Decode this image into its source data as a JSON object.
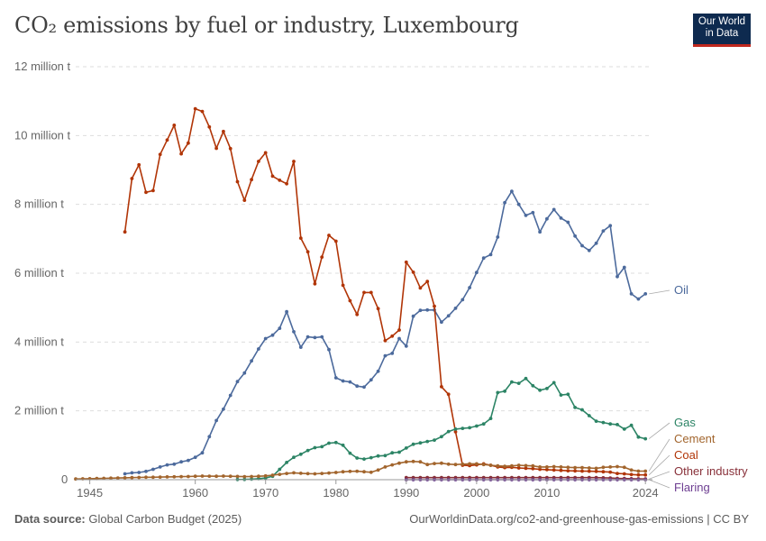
{
  "header": {
    "title": "CO₂ emissions by fuel or industry, Luxembourg",
    "logo_line1": "Our World",
    "logo_line2": "in Data"
  },
  "footer": {
    "source_label": "Data source:",
    "source_value": "Global Carbon Budget (2025)",
    "attribution": "OurWorldinData.org/co2-and-greenhouse-gas-emissions | CC BY"
  },
  "chart_data": {
    "type": "line",
    "title": "CO₂ emissions by fuel or industry, Luxembourg",
    "xlabel": "",
    "ylabel": "",
    "xlim": [
      1943,
      2025
    ],
    "ylim": [
      0,
      12000000
    ],
    "y_ticks": [
      {
        "value": 0,
        "label": "0"
      },
      {
        "value": 2000000,
        "label": "2 million t"
      },
      {
        "value": 4000000,
        "label": "4 million t"
      },
      {
        "value": 6000000,
        "label": "6 million t"
      },
      {
        "value": 8000000,
        "label": "8 million t"
      },
      {
        "value": 10000000,
        "label": "10 million t"
      },
      {
        "value": 12000000,
        "label": "12 million t"
      }
    ],
    "x_ticks": [
      {
        "value": 1945,
        "label": "1945"
      },
      {
        "value": 1960,
        "label": "1960"
      },
      {
        "value": 1970,
        "label": "1970"
      },
      {
        "value": 1980,
        "label": "1980"
      },
      {
        "value": 1990,
        "label": "1990"
      },
      {
        "value": 2000,
        "label": "2000"
      },
      {
        "value": 2010,
        "label": "2010"
      },
      {
        "value": 2024,
        "label": "2024"
      }
    ],
    "grid": true,
    "legend": "right-inline",
    "series": [
      {
        "name": "Oil",
        "color": "#4c6a9c",
        "x": [
          1950,
          1951,
          1952,
          1953,
          1954,
          1955,
          1956,
          1957,
          1958,
          1959,
          1960,
          1961,
          1962,
          1963,
          1964,
          1965,
          1966,
          1967,
          1968,
          1969,
          1970,
          1971,
          1972,
          1973,
          1974,
          1975,
          1976,
          1977,
          1978,
          1979,
          1980,
          1981,
          1982,
          1983,
          1984,
          1985,
          1986,
          1987,
          1988,
          1989,
          1990,
          1991,
          1992,
          1993,
          1994,
          1995,
          1996,
          1997,
          1998,
          1999,
          2000,
          2001,
          2002,
          2003,
          2004,
          2005,
          2006,
          2007,
          2008,
          2009,
          2010,
          2011,
          2012,
          2013,
          2014,
          2015,
          2016,
          2017,
          2018,
          2019,
          2020,
          2021,
          2022,
          2023,
          2024
        ],
        "y": [
          170000,
          200000,
          210000,
          240000,
          300000,
          370000,
          430000,
          450000,
          520000,
          560000,
          650000,
          780000,
          1250000,
          1720000,
          2050000,
          2450000,
          2850000,
          3100000,
          3450000,
          3800000,
          4100000,
          4200000,
          4400000,
          4880000,
          4300000,
          3850000,
          4150000,
          4130000,
          4150000,
          3780000,
          2960000,
          2870000,
          2840000,
          2720000,
          2690000,
          2900000,
          3150000,
          3600000,
          3670000,
          4100000,
          3880000,
          4750000,
          4920000,
          4930000,
          4930000,
          4580000,
          4760000,
          4980000,
          5230000,
          5580000,
          6020000,
          6440000,
          6540000,
          7050000,
          8050000,
          8380000,
          8000000,
          7680000,
          7760000,
          7200000,
          7580000,
          7850000,
          7600000,
          7480000,
          7080000,
          6800000,
          6660000,
          6870000,
          7230000,
          7380000,
          5900000,
          6170000,
          5400000,
          5250000,
          5400000
        ]
      },
      {
        "name": "Coal",
        "color": "#b13507",
        "x": [
          1950,
          1951,
          1952,
          1953,
          1954,
          1955,
          1956,
          1957,
          1958,
          1959,
          1960,
          1961,
          1962,
          1963,
          1964,
          1965,
          1966,
          1967,
          1968,
          1969,
          1970,
          1971,
          1972,
          1973,
          1974,
          1975,
          1976,
          1977,
          1978,
          1979,
          1980,
          1981,
          1982,
          1983,
          1984,
          1985,
          1986,
          1987,
          1988,
          1989,
          1990,
          1991,
          1992,
          1993,
          1994,
          1995,
          1996,
          1997,
          1998,
          1999,
          2000,
          2001,
          2002,
          2003,
          2004,
          2005,
          2006,
          2007,
          2008,
          2009,
          2010,
          2011,
          2012,
          2013,
          2014,
          2015,
          2016,
          2017,
          2018,
          2019,
          2020,
          2021,
          2022,
          2023,
          2024
        ],
        "y": [
          7200000,
          8750000,
          9150000,
          8350000,
          8400000,
          9450000,
          9870000,
          10300000,
          9470000,
          9780000,
          10780000,
          10700000,
          10250000,
          9630000,
          10120000,
          9620000,
          8660000,
          8120000,
          8720000,
          9250000,
          9500000,
          8820000,
          8700000,
          8600000,
          9250000,
          7020000,
          6620000,
          5690000,
          6470000,
          7100000,
          6930000,
          5650000,
          5200000,
          4800000,
          5440000,
          5440000,
          4970000,
          4040000,
          4170000,
          4350000,
          6320000,
          6030000,
          5570000,
          5760000,
          5040000,
          2700000,
          2480000,
          1390000,
          420000,
          410000,
          430000,
          460000,
          420000,
          370000,
          350000,
          360000,
          340000,
          330000,
          320000,
          300000,
          290000,
          280000,
          270000,
          260000,
          255000,
          250000,
          245000,
          240000,
          230000,
          220000,
          180000,
          170000,
          150000,
          140000,
          140000
        ]
      },
      {
        "name": "Gas",
        "color": "#2c8465",
        "x": [
          1966,
          1967,
          1968,
          1969,
          1970,
          1971,
          1972,
          1973,
          1974,
          1975,
          1976,
          1977,
          1978,
          1979,
          1980,
          1981,
          1982,
          1983,
          1984,
          1985,
          1986,
          1987,
          1988,
          1989,
          1990,
          1991,
          1992,
          1993,
          1994,
          1995,
          1996,
          1997,
          1998,
          1999,
          2000,
          2001,
          2002,
          2003,
          2004,
          2005,
          2006,
          2007,
          2008,
          2009,
          2010,
          2011,
          2012,
          2013,
          2014,
          2015,
          2016,
          2017,
          2018,
          2019,
          2020,
          2021,
          2022,
          2023,
          2024
        ],
        "y": [
          5000,
          8000,
          15000,
          30000,
          50000,
          100000,
          300000,
          500000,
          650000,
          740000,
          850000,
          930000,
          960000,
          1060000,
          1080000,
          1000000,
          770000,
          630000,
          600000,
          640000,
          690000,
          700000,
          780000,
          800000,
          920000,
          1030000,
          1070000,
          1110000,
          1150000,
          1250000,
          1400000,
          1470000,
          1490000,
          1510000,
          1560000,
          1620000,
          1780000,
          2530000,
          2570000,
          2840000,
          2800000,
          2940000,
          2730000,
          2600000,
          2650000,
          2820000,
          2460000,
          2480000,
          2100000,
          2030000,
          1860000,
          1700000,
          1660000,
          1620000,
          1600000,
          1470000,
          1580000,
          1240000,
          1190000
        ]
      },
      {
        "name": "Cement",
        "color": "#a2652d",
        "x": [
          1943,
          1944,
          1945,
          1946,
          1947,
          1948,
          1949,
          1950,
          1951,
          1952,
          1953,
          1954,
          1955,
          1956,
          1957,
          1958,
          1959,
          1960,
          1961,
          1962,
          1963,
          1964,
          1965,
          1966,
          1967,
          1968,
          1969,
          1970,
          1971,
          1972,
          1973,
          1974,
          1975,
          1976,
          1977,
          1978,
          1979,
          1980,
          1981,
          1982,
          1983,
          1984,
          1985,
          1986,
          1987,
          1988,
          1989,
          1990,
          1991,
          1992,
          1993,
          1994,
          1995,
          1996,
          1997,
          1998,
          1999,
          2000,
          2001,
          2002,
          2003,
          2004,
          2005,
          2006,
          2007,
          2008,
          2009,
          2010,
          2011,
          2012,
          2013,
          2014,
          2015,
          2016,
          2017,
          2018,
          2019,
          2020,
          2021,
          2022,
          2023,
          2024
        ],
        "y": [
          20000,
          25000,
          30000,
          35000,
          40000,
          45000,
          50000,
          55000,
          60000,
          65000,
          70000,
          72000,
          75000,
          80000,
          85000,
          90000,
          92000,
          100000,
          105000,
          102000,
          100000,
          105000,
          100000,
          95000,
          90000,
          92000,
          100000,
          110000,
          130000,
          155000,
          180000,
          200000,
          185000,
          175000,
          170000,
          180000,
          195000,
          210000,
          230000,
          240000,
          245000,
          230000,
          215000,
          280000,
          370000,
          430000,
          480000,
          520000,
          530000,
          520000,
          440000,
          470000,
          480000,
          450000,
          440000,
          450000,
          460000,
          460000,
          440000,
          420000,
          400000,
          390000,
          400000,
          420000,
          410000,
          400000,
          370000,
          370000,
          380000,
          370000,
          360000,
          350000,
          350000,
          340000,
          330000,
          360000,
          370000,
          380000,
          360000,
          280000,
          250000,
          250000
        ]
      },
      {
        "name": "Other industry",
        "color": "#883039",
        "x": [
          1990,
          1991,
          1992,
          1993,
          1994,
          1995,
          1996,
          1997,
          1998,
          1999,
          2000,
          2001,
          2002,
          2003,
          2004,
          2005,
          2006,
          2007,
          2008,
          2009,
          2010,
          2011,
          2012,
          2013,
          2014,
          2015,
          2016,
          2017,
          2018,
          2019,
          2020,
          2021,
          2022,
          2023,
          2024
        ],
        "y": [
          60000,
          60000,
          60000,
          60000,
          60000,
          60000,
          60000,
          60000,
          60000,
          60000,
          60000,
          60000,
          60000,
          60000,
          60000,
          60000,
          60000,
          60000,
          60000,
          60000,
          60000,
          60000,
          60000,
          60000,
          60000,
          60000,
          60000,
          60000,
          55000,
          50000,
          40000,
          35000,
          30000,
          25000,
          20000
        ]
      },
      {
        "name": "Flaring",
        "color": "#6d3e91",
        "x": [
          1990,
          1991,
          1992,
          1993,
          1994,
          1995,
          1996,
          1997,
          1998,
          1999,
          2000,
          2001,
          2002,
          2003,
          2004,
          2005,
          2006,
          2007,
          2008,
          2009,
          2010,
          2011,
          2012,
          2013,
          2014,
          2015,
          2016,
          2017,
          2018,
          2019,
          2020,
          2021,
          2022,
          2023,
          2024
        ],
        "y": [
          0,
          0,
          0,
          0,
          0,
          0,
          0,
          0,
          0,
          0,
          0,
          0,
          0,
          0,
          0,
          0,
          0,
          0,
          0,
          0,
          0,
          0,
          0,
          0,
          0,
          0,
          0,
          0,
          0,
          0,
          0,
          0,
          0,
          0,
          0
        ]
      }
    ]
  }
}
